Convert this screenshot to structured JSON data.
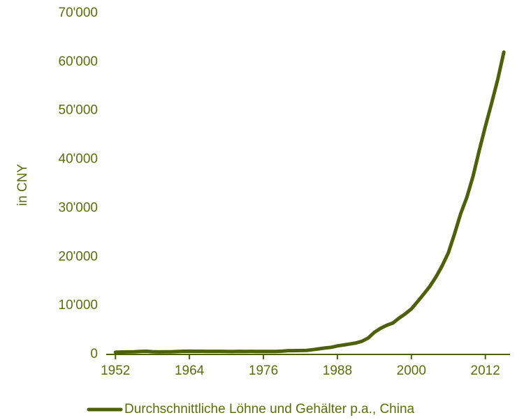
{
  "chart_data": {
    "type": "line",
    "y_label": "in CNY",
    "x": [
      1952,
      1953,
      1954,
      1955,
      1956,
      1957,
      1958,
      1959,
      1960,
      1961,
      1962,
      1963,
      1964,
      1965,
      1966,
      1967,
      1968,
      1969,
      1970,
      1971,
      1972,
      1973,
      1974,
      1975,
      1976,
      1977,
      1978,
      1979,
      1980,
      1981,
      1982,
      1983,
      1984,
      1985,
      1986,
      1987,
      1988,
      1989,
      1990,
      1991,
      1992,
      1993,
      1994,
      1995,
      1996,
      1997,
      1998,
      1999,
      2000,
      2001,
      2002,
      2003,
      2004,
      2005,
      2006,
      2007,
      2008,
      2009,
      2010,
      2011,
      2012,
      2013,
      2014,
      2015
    ],
    "series": [
      {
        "name": "Durchschnittliche Löhne und Gehälter p.a., China",
        "color": "#4f600b",
        "values": [
          445,
          495,
          517,
          534,
          610,
          637,
          550,
          524,
          528,
          537,
          592,
          641,
          661,
          652,
          636,
          630,
          621,
          618,
          609,
          597,
          622,
          614,
          622,
          613,
          605,
          602,
          615,
          668,
          762,
          772,
          798,
          826,
          974,
          1148,
          1329,
          1459,
          1747,
          1935,
          2140,
          2340,
          2711,
          3371,
          4538,
          5348,
          5980,
          6444,
          7446,
          8319,
          9333,
          10834,
          12373,
          13969,
          15920,
          18200,
          20856,
          24721,
          28898,
          32244,
          36539,
          41799,
          46769,
          51483,
          56360,
          62029
        ]
      }
    ],
    "xlim": [
      1950.5,
      2016
    ],
    "xticks": [
      1952,
      1964,
      1976,
      1988,
      2000,
      2012
    ],
    "ylim": [
      0,
      70000
    ],
    "yticks": [
      0,
      {
        "value": 10000,
        "label": "10'000"
      },
      {
        "value": 20000,
        "label": "20'000"
      },
      {
        "value": 30000,
        "label": "30'000"
      },
      {
        "value": 40000,
        "label": "40'000"
      },
      {
        "value": 50000,
        "label": "50'000"
      },
      {
        "value": 60000,
        "label": "60'000"
      },
      {
        "value": 70000,
        "label": "70'000"
      }
    ],
    "legend": "bottom"
  }
}
